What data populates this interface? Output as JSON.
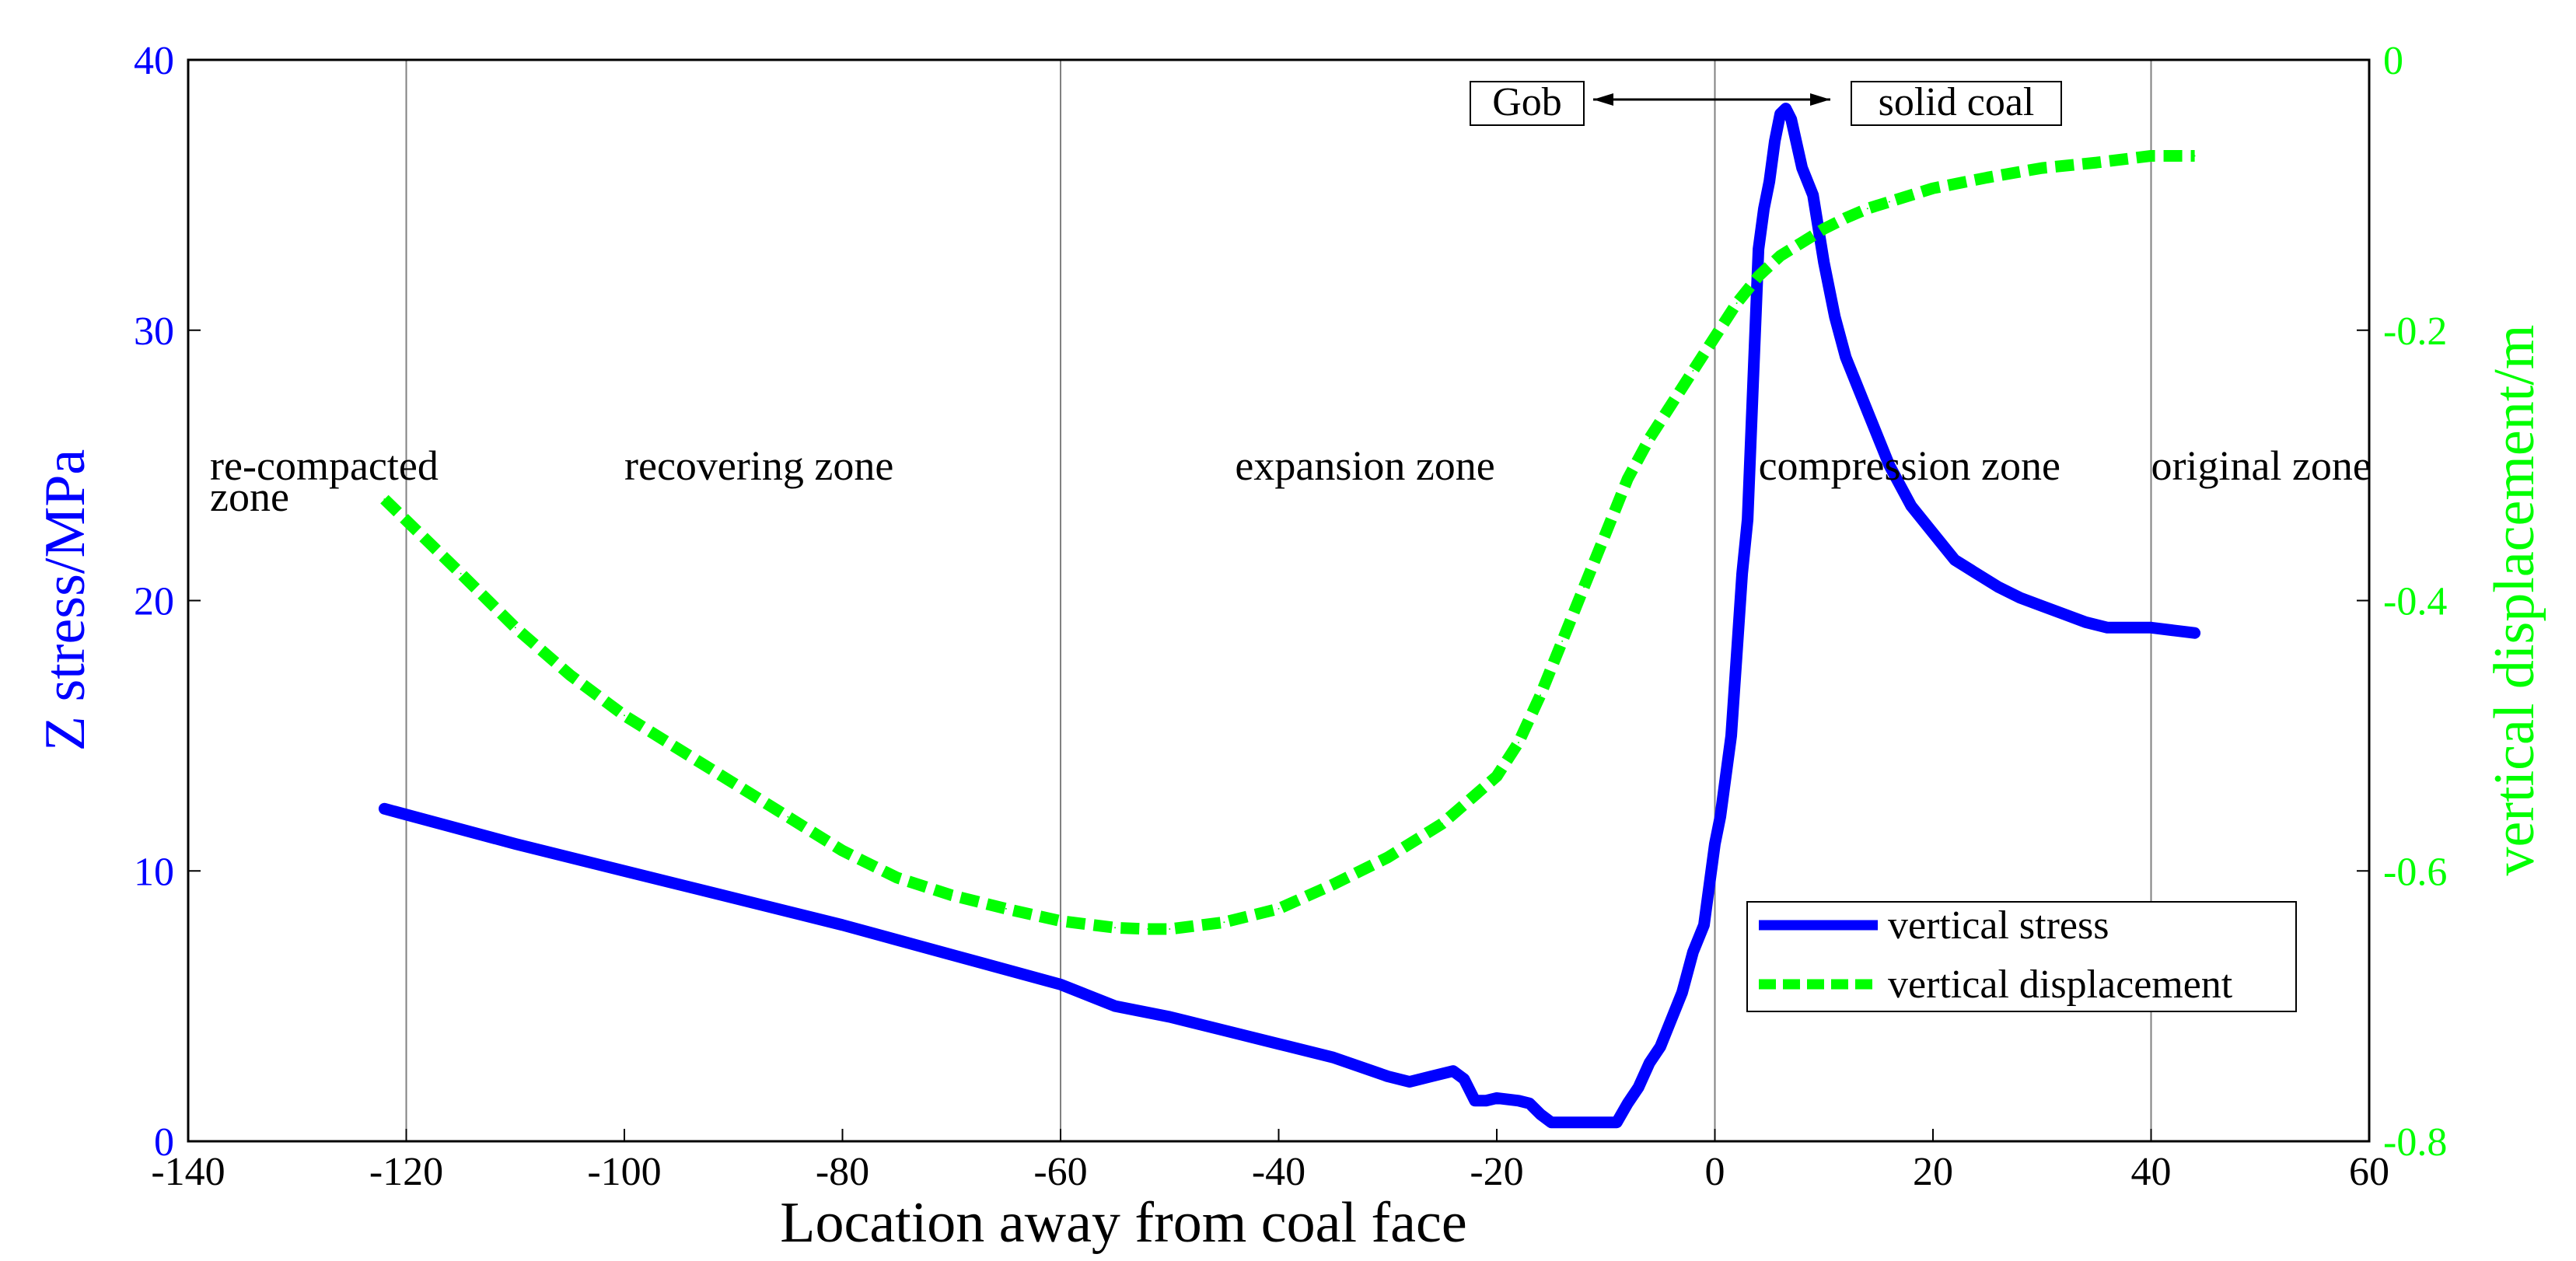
{
  "colors": {
    "stress": "#0000ff",
    "displacement": "#00ff00",
    "axis": "#000000",
    "background": "#ffffff"
  },
  "chart_data": {
    "type": "line",
    "title": "",
    "xlabel": "Location away from coal face",
    "ylabel_left": "Z stress/MPa",
    "ylabel_right": "vertical displacement/m",
    "xlim": [
      -140,
      60
    ],
    "ylim_left": [
      0,
      40
    ],
    "ylim_right": [
      -0.8,
      0
    ],
    "x_ticks": [
      "-140",
      "-120",
      "-100",
      "-80",
      "-60",
      "-40",
      "-20",
      "0",
      "20",
      "40",
      "60"
    ],
    "y_left_ticks": [
      "0",
      "10",
      "20",
      "30",
      "40"
    ],
    "y_right_ticks": [
      "-0.8",
      "-0.6",
      "-0.4",
      "-0.2",
      "0"
    ],
    "vertical_lines": [
      -120,
      -60,
      0,
      40
    ],
    "zones": [
      {
        "lines": [
          "re-compacted",
          "zone"
        ],
        "x": -138
      },
      {
        "lines": [
          "recovering zone"
        ],
        "x": -100
      },
      {
        "lines": [
          "expansion  zone"
        ],
        "x": -44
      },
      {
        "lines": [
          "compression  zone"
        ],
        "x": 4
      },
      {
        "lines": [
          "original  zone"
        ],
        "x": 40
      }
    ],
    "annotations": {
      "gob": "Gob",
      "solid_coal": "solid coal"
    },
    "legend": {
      "position": "bottom-right",
      "entries": [
        "vertical stress",
        "vertical displacement"
      ]
    },
    "series": [
      {
        "name": "vertical stress",
        "axis": "left",
        "style": "solid",
        "x": [
          -122,
          -110,
          -100,
          -90,
          -80,
          -70,
          -60,
          -55,
          -50,
          -45,
          -40,
          -35,
          -30,
          -28,
          -26,
          -24,
          -23,
          -22,
          -21,
          -20,
          -18,
          -17,
          -16,
          -15,
          -14,
          -12,
          -10,
          -9,
          -8,
          -7,
          -6,
          -5,
          -4,
          -3,
          -2,
          -1,
          -0.5,
          0,
          0.5,
          1,
          1.5,
          2,
          2.5,
          3,
          3.5,
          4,
          4.5,
          5,
          5.5,
          6,
          6.5,
          7,
          8,
          9,
          10,
          11,
          12,
          13,
          14,
          15,
          16,
          18,
          20,
          22,
          24,
          26,
          28,
          30,
          32,
          34,
          36,
          38,
          40,
          42,
          44
        ],
        "values": [
          12.3,
          11.0,
          10.0,
          9.0,
          8.0,
          6.9,
          5.8,
          5.0,
          4.6,
          4.1,
          3.6,
          3.1,
          2.4,
          2.2,
          2.4,
          2.6,
          2.3,
          1.5,
          1.5,
          1.6,
          1.5,
          1.4,
          1.0,
          0.7,
          0.7,
          0.7,
          0.7,
          0.7,
          1.4,
          2.0,
          2.9,
          3.5,
          4.5,
          5.5,
          7.0,
          8.0,
          9.5,
          11.0,
          12.0,
          13.5,
          15.0,
          18.0,
          21.0,
          23.0,
          28.0,
          33.0,
          34.5,
          35.5,
          37.0,
          38.0,
          38.2,
          37.8,
          36.0,
          35.0,
          32.5,
          30.5,
          29.0,
          28.0,
          27.0,
          26.0,
          25.0,
          23.5,
          22.5,
          21.5,
          21.0,
          20.5,
          20.1,
          19.8,
          19.5,
          19.2,
          19.0,
          19.0,
          19.0,
          18.9,
          18.8
        ]
      },
      {
        "name": "vertical displacement",
        "axis": "right",
        "style": "dashed",
        "x": [
          -122,
          -115,
          -110,
          -105,
          -100,
          -95,
          -90,
          -85,
          -80,
          -75,
          -70,
          -65,
          -60,
          -55,
          -52,
          -50,
          -45,
          -40,
          -35,
          -30,
          -25,
          -20,
          -18,
          -16,
          -14,
          -12,
          -10,
          -8,
          -6,
          -4,
          -2,
          0,
          2,
          4,
          6,
          8,
          10,
          12,
          14,
          16,
          20,
          25,
          30,
          35,
          40,
          44
        ],
        "values": [
          -0.325,
          -0.38,
          -0.42,
          -0.455,
          -0.485,
          -0.51,
          -0.535,
          -0.56,
          -0.585,
          -0.605,
          -0.618,
          -0.628,
          -0.637,
          -0.642,
          -0.643,
          -0.643,
          -0.638,
          -0.628,
          -0.61,
          -0.59,
          -0.565,
          -0.53,
          -0.505,
          -0.47,
          -0.43,
          -0.39,
          -0.35,
          -0.31,
          -0.28,
          -0.255,
          -0.23,
          -0.205,
          -0.18,
          -0.16,
          -0.145,
          -0.135,
          -0.125,
          -0.117,
          -0.11,
          -0.105,
          -0.095,
          -0.087,
          -0.08,
          -0.076,
          -0.071,
          -0.071
        ]
      }
    ]
  }
}
